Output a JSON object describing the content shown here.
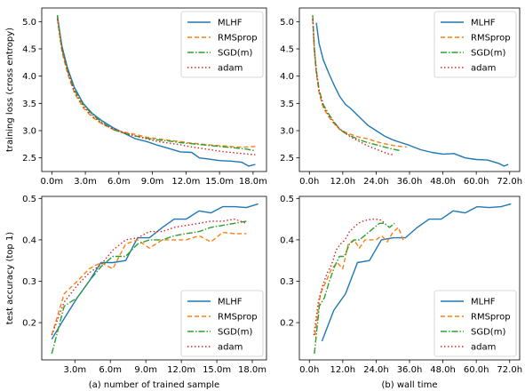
{
  "chart_data": [
    {
      "type": "line",
      "ylabel": "training loss (cross entropy)",
      "xlabel": "",
      "xlim": [
        -0.9,
        19.2
      ],
      "ylim": [
        2.25,
        5.25
      ],
      "xticks": [
        0,
        3,
        6,
        9,
        12,
        15,
        18
      ],
      "xticklabels": [
        "0.0m",
        "3.0m",
        "6.0m",
        "9.0m",
        "12.0m",
        "15.0m",
        "18.0m"
      ],
      "yticks": [
        2.5,
        3.0,
        3.5,
        4.0,
        4.5,
        5.0
      ],
      "yticklabels": [
        "2.5",
        "3.0",
        "3.5",
        "4.0",
        "4.5",
        "5.0"
      ],
      "legend": "top-right",
      "series": [
        {
          "name": "MLHF",
          "color": "#1f77b4",
          "dash": "",
          "x": [
            0.5,
            0.9,
            1.4,
            2.0,
            2.8,
            3.6,
            4.5,
            5.5,
            6.5,
            7.5,
            8.5,
            9.5,
            10.5,
            11.5,
            12.5,
            13.2,
            14.0,
            15.0,
            16.0,
            17.0,
            17.6,
            18.2
          ],
          "y": [
            5.1,
            4.55,
            4.15,
            3.8,
            3.5,
            3.32,
            3.18,
            3.05,
            2.95,
            2.85,
            2.8,
            2.73,
            2.67,
            2.61,
            2.6,
            2.5,
            2.48,
            2.45,
            2.44,
            2.42,
            2.35,
            2.38
          ]
        },
        {
          "name": "RMSprop",
          "color": "#ff7f0e",
          "dash": "5,3",
          "x": [
            0.5,
            0.9,
            1.4,
            2.0,
            2.8,
            3.6,
            4.5,
            5.5,
            6.5,
            7.5,
            8.5,
            9.5,
            10.5,
            11.5,
            12.5,
            13.5,
            14.5,
            15.5,
            16.5,
            17.5,
            18.2
          ],
          "y": [
            5.05,
            4.45,
            4.05,
            3.7,
            3.42,
            3.25,
            3.12,
            3.02,
            2.97,
            2.93,
            2.88,
            2.85,
            2.82,
            2.8,
            2.77,
            2.75,
            2.73,
            2.72,
            2.7,
            2.7,
            2.71
          ]
        },
        {
          "name": "SGD(m)",
          "color": "#2ca02c",
          "dash": "7,2,1.5,2",
          "x": [
            0.5,
            0.9,
            1.4,
            2.0,
            2.8,
            3.6,
            4.5,
            5.5,
            6.5,
            7.5,
            8.5,
            9.5,
            10.5,
            11.5,
            12.5,
            13.5,
            14.5,
            15.5,
            16.5,
            17.5,
            18.2
          ],
          "y": [
            5.12,
            4.5,
            4.1,
            3.75,
            3.48,
            3.3,
            3.15,
            3.02,
            2.95,
            2.9,
            2.86,
            2.83,
            2.81,
            2.78,
            2.76,
            2.74,
            2.72,
            2.7,
            2.68,
            2.66,
            2.63
          ]
        },
        {
          "name": "adam",
          "color": "#d62728",
          "dash": "1.5,2.5",
          "x": [
            0.5,
            0.9,
            1.4,
            2.0,
            2.8,
            3.6,
            4.5,
            5.5,
            6.5,
            7.5,
            8.5,
            9.5,
            10.5,
            11.5,
            12.5,
            13.5,
            14.5,
            15.5,
            16.5,
            17.5,
            18.2
          ],
          "y": [
            5.05,
            4.5,
            4.1,
            3.72,
            3.45,
            3.27,
            3.13,
            3.03,
            2.96,
            2.9,
            2.85,
            2.8,
            2.77,
            2.74,
            2.7,
            2.67,
            2.64,
            2.61,
            2.59,
            2.57,
            2.56
          ]
        }
      ]
    },
    {
      "type": "line",
      "ylabel": "",
      "xlabel": "",
      "xlim": [
        -3.6,
        75.6
      ],
      "ylim": [
        2.25,
        5.25
      ],
      "xticks": [
        0,
        12,
        24,
        36,
        48,
        60,
        72
      ],
      "xticklabels": [
        "0.0h",
        "12.0h",
        "24.0h",
        "36.0h",
        "48.0h",
        "60.0h",
        "72.0h"
      ],
      "yticks": [
        2.5,
        3.0,
        3.5,
        4.0,
        4.5,
        5.0
      ],
      "yticklabels": [
        "2.5",
        "3.0",
        "3.5",
        "4.0",
        "4.5",
        "5.0"
      ],
      "legend": "top-right",
      "series": [
        {
          "name": "MLHF",
          "color": "#1f77b4",
          "dash": "",
          "x": [
            2.5,
            3.5,
            5,
            7,
            9,
            11,
            13,
            15,
            18,
            21,
            24,
            27,
            30,
            33,
            36,
            40,
            44,
            48,
            52,
            56,
            60,
            64,
            68,
            70,
            71.5
          ],
          "y": [
            4.98,
            4.6,
            4.3,
            4.05,
            3.82,
            3.62,
            3.48,
            3.4,
            3.25,
            3.1,
            3.0,
            2.9,
            2.83,
            2.78,
            2.73,
            2.65,
            2.6,
            2.57,
            2.58,
            2.5,
            2.47,
            2.46,
            2.4,
            2.35,
            2.38
          ]
        },
        {
          "name": "RMSprop",
          "color": "#ff7f0e",
          "dash": "5,3",
          "x": [
            1.2,
            1.8,
            2.5,
            3.5,
            5,
            7,
            9,
            11,
            13,
            15,
            18,
            21,
            24,
            27,
            30,
            33,
            35
          ],
          "y": [
            5.05,
            4.45,
            4.05,
            3.7,
            3.42,
            3.25,
            3.12,
            3.02,
            2.97,
            2.93,
            2.88,
            2.85,
            2.8,
            2.76,
            2.73,
            2.71,
            2.7
          ]
        },
        {
          "name": "SGD(m)",
          "color": "#2ca02c",
          "dash": "7,2,1.5,2",
          "x": [
            1.2,
            1.8,
            2.5,
            3.5,
            5,
            7,
            9,
            11,
            13,
            15,
            18,
            21,
            24,
            27,
            30,
            33
          ],
          "y": [
            5.12,
            4.5,
            4.1,
            3.75,
            3.48,
            3.3,
            3.15,
            3.02,
            2.95,
            2.9,
            2.83,
            2.78,
            2.74,
            2.7,
            2.66,
            2.63
          ]
        },
        {
          "name": "adam",
          "color": "#d62728",
          "dash": "1.5,2.5",
          "x": [
            1.2,
            1.8,
            2.5,
            3.5,
            5,
            7,
            9,
            11,
            13,
            15,
            18,
            21,
            24,
            26,
            28,
            30
          ],
          "y": [
            5.05,
            4.5,
            4.1,
            3.72,
            3.45,
            3.27,
            3.13,
            3.03,
            2.95,
            2.88,
            2.8,
            2.72,
            2.66,
            2.62,
            2.58,
            2.56
          ]
        }
      ]
    },
    {
      "type": "line",
      "ylabel": "test accuracy (top 1)",
      "xlabel": "(a) number of trained sample",
      "xlim": [
        0.2,
        19.2
      ],
      "ylim": [
        0.11,
        0.505
      ],
      "xticks": [
        3,
        6,
        9,
        12,
        15,
        18
      ],
      "xticklabels": [
        "3.0m",
        "6.0m",
        "9.0m",
        "12.0m",
        "15.0m",
        "18.0m"
      ],
      "yticks": [
        0.2,
        0.3,
        0.4,
        0.5
      ],
      "yticklabels": [
        "0.2",
        "0.3",
        "0.4",
        "0.5"
      ],
      "legend": "bottom-right",
      "series": [
        {
          "name": "MLHF",
          "color": "#1f77b4",
          "dash": "",
          "x": [
            1.05,
            2.1,
            3.2,
            4.2,
            5.2,
            6.2,
            7.3,
            8.3,
            9.3,
            10.4,
            11.4,
            12.4,
            13.5,
            14.5,
            15.5,
            16.5,
            17.5,
            18.5
          ],
          "y": [
            0.16,
            0.21,
            0.26,
            0.3,
            0.345,
            0.345,
            0.35,
            0.405,
            0.405,
            0.43,
            0.45,
            0.45,
            0.47,
            0.465,
            0.48,
            0.48,
            0.478,
            0.487
          ]
        },
        {
          "name": "RMSprop",
          "color": "#ff7f0e",
          "dash": "5,3",
          "x": [
            1.05,
            2.1,
            3.2,
            4.2,
            5.2,
            6.2,
            7.3,
            8.3,
            9.3,
            10.4,
            11.4,
            12.4,
            13.5,
            14.5,
            15.5,
            16.5,
            17.5
          ],
          "y": [
            0.17,
            0.27,
            0.3,
            0.33,
            0.345,
            0.33,
            0.39,
            0.4,
            0.38,
            0.4,
            0.4,
            0.4,
            0.41,
            0.395,
            0.418,
            0.415,
            0.415
          ]
        },
        {
          "name": "SGD(m)",
          "color": "#2ca02c",
          "dash": "7,2,1.5,2",
          "x": [
            1.05,
            2.1,
            3.2,
            4.2,
            5.2,
            6.2,
            7.3,
            8.3,
            9.3,
            10.4,
            11.4,
            12.4,
            13.5,
            14.5,
            15.5,
            16.5,
            17.5
          ],
          "y": [
            0.125,
            0.24,
            0.26,
            0.3,
            0.335,
            0.36,
            0.36,
            0.39,
            0.4,
            0.4,
            0.41,
            0.415,
            0.42,
            0.43,
            0.435,
            0.44,
            0.445
          ]
        },
        {
          "name": "adam",
          "color": "#d62728",
          "dash": "1.5,2.5",
          "x": [
            1.05,
            2.1,
            3.2,
            4.2,
            5.2,
            6.2,
            7.3,
            8.3,
            9.3,
            10.4,
            11.4,
            12.4,
            13.5,
            14.5,
            15.5,
            16.5,
            17.5
          ],
          "y": [
            0.17,
            0.25,
            0.29,
            0.32,
            0.34,
            0.375,
            0.4,
            0.405,
            0.42,
            0.42,
            0.43,
            0.435,
            0.44,
            0.445,
            0.445,
            0.45,
            0.44
          ]
        }
      ]
    },
    {
      "type": "line",
      "ylabel": "",
      "xlabel": "(b) wall time",
      "xlim": [
        -3.6,
        75.6
      ],
      "ylim": [
        0.11,
        0.505
      ],
      "xticks": [
        0,
        12,
        24,
        36,
        48,
        60,
        72
      ],
      "xticklabels": [
        "0.0h",
        "12.0h",
        "24.0h",
        "36.0h",
        "48.0h",
        "60.0h",
        "72.0h"
      ],
      "yticks": [
        0.2,
        0.3,
        0.4,
        0.5
      ],
      "yticklabels": [
        "0.2",
        "0.3",
        "0.4",
        "0.5"
      ],
      "legend": "bottom-right",
      "series": [
        {
          "name": "MLHF",
          "color": "#1f77b4",
          "dash": "",
          "x": [
            4.5,
            8.8,
            13,
            17.3,
            21.6,
            25.9,
            30.2,
            34.5,
            38.8,
            43.1,
            47.4,
            51.7,
            56,
            60.3,
            64.6,
            68.9,
            72.5
          ],
          "y": [
            0.155,
            0.23,
            0.27,
            0.345,
            0.35,
            0.4,
            0.405,
            0.405,
            0.43,
            0.45,
            0.45,
            0.47,
            0.465,
            0.48,
            0.478,
            0.48,
            0.487
          ]
        },
        {
          "name": "RMSprop",
          "color": "#ff7f0e",
          "dash": "5,3",
          "x": [
            2,
            4,
            6,
            8,
            10,
            12,
            14,
            16,
            18,
            20,
            22,
            24,
            26,
            28,
            30,
            32,
            34
          ],
          "y": [
            0.17,
            0.27,
            0.3,
            0.33,
            0.345,
            0.33,
            0.39,
            0.4,
            0.38,
            0.4,
            0.4,
            0.4,
            0.41,
            0.395,
            0.418,
            0.43,
            0.395
          ]
        },
        {
          "name": "SGD(m)",
          "color": "#2ca02c",
          "dash": "7,2,1.5,2",
          "x": [
            1.8,
            3.6,
            5.4,
            7.2,
            9,
            10.8,
            12.6,
            14.4,
            16.2,
            18,
            19.8,
            21.6,
            23.4,
            25.2,
            27,
            28.8,
            30.6
          ],
          "y": [
            0.125,
            0.24,
            0.26,
            0.3,
            0.335,
            0.36,
            0.36,
            0.39,
            0.4,
            0.4,
            0.41,
            0.42,
            0.43,
            0.44,
            0.44,
            0.43,
            0.44
          ]
        },
        {
          "name": "adam",
          "color": "#d62728",
          "dash": "1.5,2.5",
          "x": [
            1.6,
            3.2,
            4.8,
            6.4,
            8,
            9.6,
            11.2,
            12.8,
            14.4,
            16,
            17.6,
            19.2,
            20.8,
            22.4,
            24,
            25.6,
            27.2
          ],
          "y": [
            0.17,
            0.25,
            0.29,
            0.32,
            0.34,
            0.375,
            0.39,
            0.4,
            0.42,
            0.43,
            0.44,
            0.445,
            0.448,
            0.45,
            0.45,
            0.448,
            0.44
          ]
        }
      ]
    }
  ]
}
